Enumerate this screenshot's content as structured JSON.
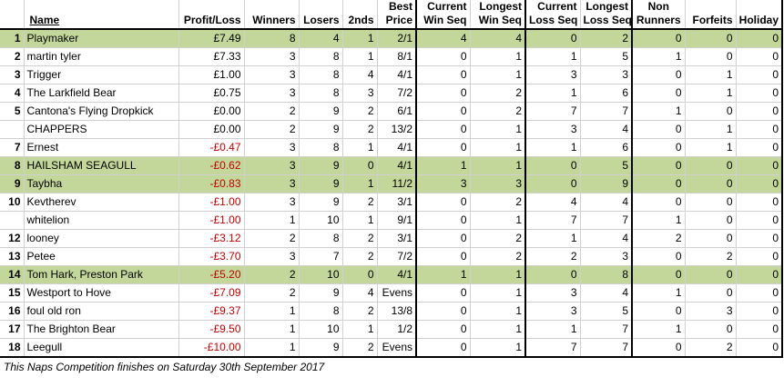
{
  "headers": {
    "name": "Name",
    "profit_loss": "Profit/Loss",
    "winners": "Winners",
    "losers": "Losers",
    "seconds": "2nds",
    "best_price": [
      "Best",
      "Price"
    ],
    "current_win_seq": [
      "Current",
      "Win Seq"
    ],
    "longest_win_seq": [
      "Longest",
      "Win Seq"
    ],
    "current_loss_seq": [
      "Current",
      "Loss Seq"
    ],
    "longest_loss_seq": [
      "Longest",
      "Loss Seq"
    ],
    "non_runners": [
      "Non",
      "Runners"
    ],
    "forfeits": "Forfeits",
    "holiday": "Holiday"
  },
  "rows": [
    {
      "pos": "1",
      "name": "Playmaker",
      "pl": "£7.49",
      "neg": false,
      "hl": true,
      "w": "8",
      "l": "4",
      "s": "1",
      "bp": "2/1",
      "cws": "4",
      "lws": "4",
      "cls": "0",
      "lls": "2",
      "nr": "0",
      "f": "0",
      "h": "0"
    },
    {
      "pos": "2",
      "name": "martin tyler",
      "pl": "£7.33",
      "neg": false,
      "hl": false,
      "w": "3",
      "l": "8",
      "s": "1",
      "bp": "8/1",
      "cws": "0",
      "lws": "1",
      "cls": "1",
      "lls": "5",
      "nr": "1",
      "f": "0",
      "h": "0"
    },
    {
      "pos": "3",
      "name": "Trigger",
      "pl": "£1.00",
      "neg": false,
      "hl": false,
      "w": "3",
      "l": "8",
      "s": "4",
      "bp": "4/1",
      "cws": "0",
      "lws": "1",
      "cls": "3",
      "lls": "3",
      "nr": "0",
      "f": "1",
      "h": "0"
    },
    {
      "pos": "4",
      "name": "The Larkfield Bear",
      "pl": "£0.75",
      "neg": false,
      "hl": false,
      "w": "3",
      "l": "8",
      "s": "3",
      "bp": "7/2",
      "cws": "0",
      "lws": "2",
      "cls": "1",
      "lls": "6",
      "nr": "0",
      "f": "1",
      "h": "0"
    },
    {
      "pos": "5",
      "name": "Cantona's Flying Dropkick",
      "pl": "£0.00",
      "neg": false,
      "hl": false,
      "w": "2",
      "l": "9",
      "s": "2",
      "bp": "6/1",
      "cws": "0",
      "lws": "2",
      "cls": "7",
      "lls": "7",
      "nr": "1",
      "f": "0",
      "h": "0"
    },
    {
      "pos": "",
      "name": "CHAPPERS",
      "pl": "£0.00",
      "neg": false,
      "hl": false,
      "w": "2",
      "l": "9",
      "s": "2",
      "bp": "13/2",
      "cws": "0",
      "lws": "1",
      "cls": "3",
      "lls": "4",
      "nr": "0",
      "f": "1",
      "h": "0"
    },
    {
      "pos": "7",
      "name": "Ernest",
      "pl": "-£0.47",
      "neg": true,
      "hl": false,
      "w": "3",
      "l": "8",
      "s": "1",
      "bp": "4/1",
      "cws": "0",
      "lws": "1",
      "cls": "1",
      "lls": "6",
      "nr": "0",
      "f": "1",
      "h": "0"
    },
    {
      "pos": "8",
      "name": "HAILSHAM SEAGULL",
      "pl": "-£0.62",
      "neg": true,
      "hl": true,
      "w": "3",
      "l": "9",
      "s": "0",
      "bp": "4/1",
      "cws": "1",
      "lws": "1",
      "cls": "0",
      "lls": "5",
      "nr": "0",
      "f": "0",
      "h": "0"
    },
    {
      "pos": "9",
      "name": "Taybha",
      "pl": "-£0.83",
      "neg": true,
      "hl": true,
      "w": "3",
      "l": "9",
      "s": "1",
      "bp": "11/2",
      "cws": "3",
      "lws": "3",
      "cls": "0",
      "lls": "9",
      "nr": "0",
      "f": "0",
      "h": "0"
    },
    {
      "pos": "10",
      "name": "Kevtherev",
      "pl": "-£1.00",
      "neg": true,
      "hl": false,
      "w": "3",
      "l": "9",
      "s": "2",
      "bp": "3/1",
      "cws": "0",
      "lws": "2",
      "cls": "4",
      "lls": "4",
      "nr": "0",
      "f": "0",
      "h": "0"
    },
    {
      "pos": "",
      "name": "whitelion",
      "pl": "-£1.00",
      "neg": true,
      "hl": false,
      "w": "1",
      "l": "10",
      "s": "1",
      "bp": "9/1",
      "cws": "0",
      "lws": "1",
      "cls": "7",
      "lls": "7",
      "nr": "1",
      "f": "0",
      "h": "0"
    },
    {
      "pos": "12",
      "name": "looney",
      "pl": "-£3.12",
      "neg": true,
      "hl": false,
      "w": "2",
      "l": "8",
      "s": "2",
      "bp": "3/1",
      "cws": "0",
      "lws": "2",
      "cls": "1",
      "lls": "4",
      "nr": "2",
      "f": "0",
      "h": "0"
    },
    {
      "pos": "13",
      "name": "Petee",
      "pl": "-£3.70",
      "neg": true,
      "hl": false,
      "w": "3",
      "l": "7",
      "s": "2",
      "bp": "7/2",
      "cws": "0",
      "lws": "2",
      "cls": "2",
      "lls": "3",
      "nr": "0",
      "f": "2",
      "h": "0"
    },
    {
      "pos": "14",
      "name": "Tom Hark, Preston Park",
      "pl": "-£5.20",
      "neg": true,
      "hl": true,
      "w": "2",
      "l": "10",
      "s": "0",
      "bp": "4/1",
      "cws": "1",
      "lws": "1",
      "cls": "0",
      "lls": "8",
      "nr": "0",
      "f": "0",
      "h": "0"
    },
    {
      "pos": "15",
      "name": "Westport to Hove",
      "pl": "-£7.09",
      "neg": true,
      "hl": false,
      "w": "2",
      "l": "9",
      "s": "4",
      "bp": "Evens",
      "cws": "0",
      "lws": "1",
      "cls": "3",
      "lls": "4",
      "nr": "1",
      "f": "0",
      "h": "0"
    },
    {
      "pos": "16",
      "name": "foul old ron",
      "pl": "-£9.37",
      "neg": true,
      "hl": false,
      "w": "1",
      "l": "8",
      "s": "2",
      "bp": "13/8",
      "cws": "0",
      "lws": "1",
      "cls": "3",
      "lls": "5",
      "nr": "0",
      "f": "3",
      "h": "0"
    },
    {
      "pos": "17",
      "name": "The Brighton Bear",
      "pl": "-£9.50",
      "neg": true,
      "hl": false,
      "w": "1",
      "l": "10",
      "s": "1",
      "bp": "1/2",
      "cws": "0",
      "lws": "1",
      "cls": "1",
      "lls": "7",
      "nr": "1",
      "f": "0",
      "h": "0"
    },
    {
      "pos": "18",
      "name": "Leegull",
      "pl": "-£10.00",
      "neg": true,
      "hl": false,
      "w": "1",
      "l": "9",
      "s": "2",
      "bp": "Evens",
      "cws": "0",
      "lws": "1",
      "cls": "7",
      "lls": "7",
      "nr": "0",
      "f": "2",
      "h": "0"
    }
  ],
  "footer": "This Naps Competition finishes on Saturday 30th September 2017",
  "colors": {
    "highlight": "#c4d79b",
    "negative": "#c00000"
  }
}
